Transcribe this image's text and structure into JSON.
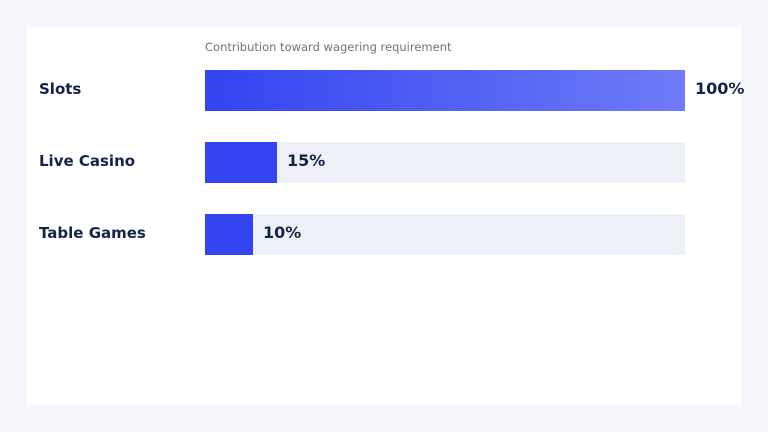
{
  "chart_data": {
    "type": "bar",
    "orientation": "horizontal",
    "title": "Contribution toward wagering requirement",
    "categories": [
      "Slots",
      "Live Casino",
      "Table Games"
    ],
    "values": [
      100,
      15,
      10
    ],
    "value_labels": [
      "100%",
      "15%",
      "10%"
    ],
    "xlim": [
      0,
      100
    ],
    "grid": false,
    "legend": "none",
    "colors": {
      "bar_start": "#3344f0",
      "bar_end": "#6f7bf8",
      "track": "#eef0f8",
      "label": "#13234a",
      "caption": "#6b7280"
    }
  }
}
